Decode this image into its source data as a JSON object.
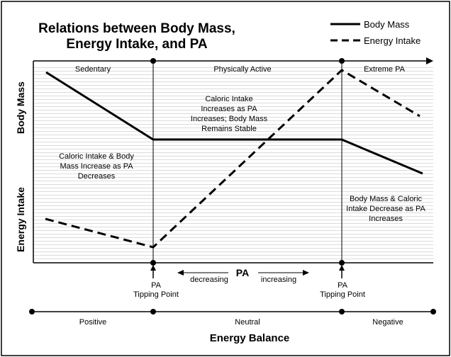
{
  "title": {
    "line1": "Relations between Body Mass,",
    "line2": "Energy Intake, and PA"
  },
  "legend": {
    "body_mass": "Body Mass",
    "energy_intake": "Energy Intake"
  },
  "y_axis": {
    "upper_label": "Body Mass",
    "lower_label": "Energy Intake"
  },
  "zones": {
    "sedentary": "Sedentary",
    "physically_active": "Physically Active",
    "extreme": "Extreme PA"
  },
  "annotations": {
    "left": [
      "Caloric Intake & Body",
      "Mass Increase as PA",
      "Decreases"
    ],
    "middle": [
      "Caloric Intake",
      "Increases as PA",
      "Increases; Body Mass",
      "Remains Stable"
    ],
    "right": [
      "Body Mass & Caloric",
      "Intake Decrease as PA",
      "Increases"
    ]
  },
  "pa_axis": {
    "label": "PA",
    "decreasing": "decreasing",
    "increasing": "increasing"
  },
  "tipping_points": {
    "left": [
      "PA",
      "Tipping Point"
    ],
    "right": [
      "PA",
      "Tipping Point"
    ]
  },
  "energy_balance": {
    "title": "Energy Balance",
    "positive": "Positive",
    "neutral": "Neutral",
    "negative": "Negative"
  }
}
